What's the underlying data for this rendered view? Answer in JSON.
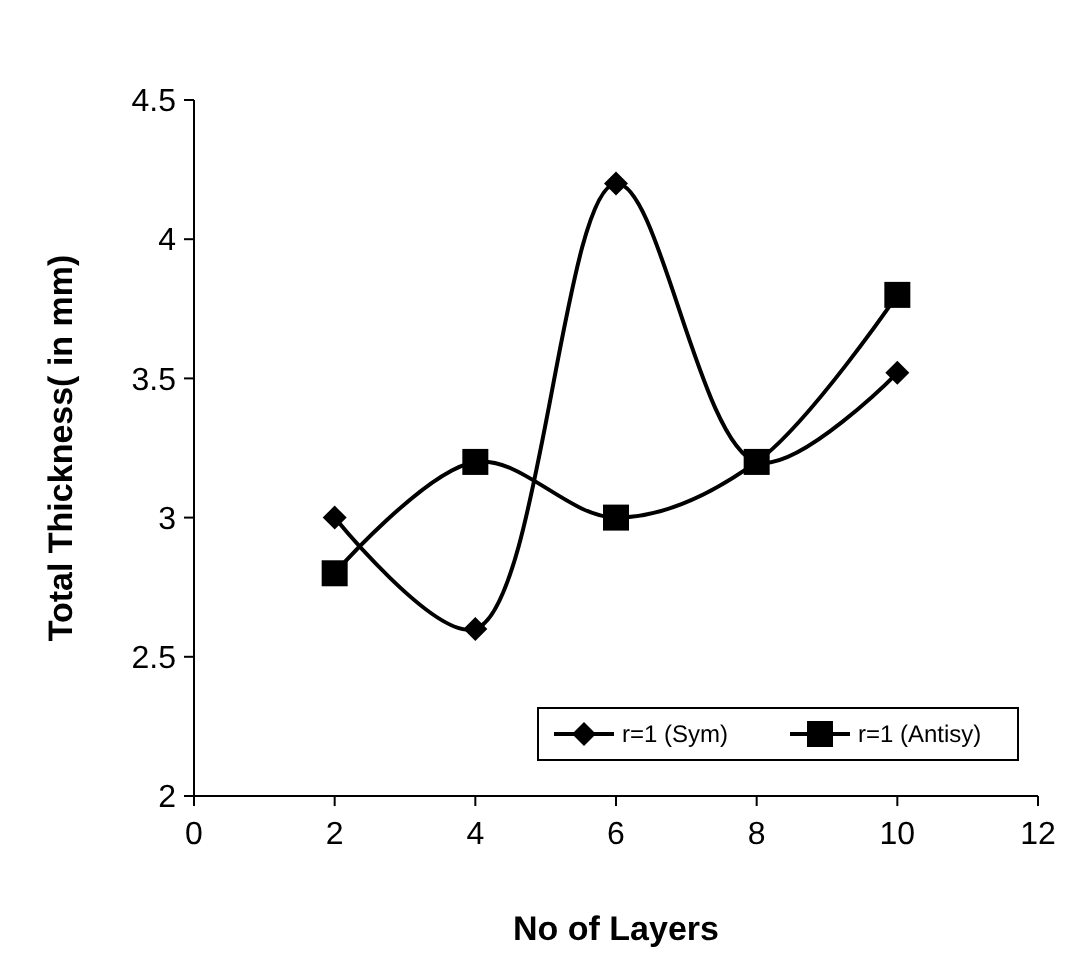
{
  "chart_data": {
    "type": "line",
    "xlabel": "No of Layers",
    "ylabel": "Total Thickness( in mm)",
    "x": [
      2,
      4,
      6,
      8,
      10
    ],
    "series": [
      {
        "name": "r=1 (Sym)",
        "color": "#000000",
        "marker": "diamond",
        "values": [
          3.0,
          2.6,
          4.2,
          3.2,
          3.52
        ]
      },
      {
        "name": "r=1 (Antisy)",
        "color": "#000000",
        "marker": "square",
        "values": [
          2.8,
          3.2,
          3.0,
          3.2,
          3.8
        ]
      }
    ],
    "xlim": [
      0,
      12
    ],
    "xticks": [
      0,
      2,
      4,
      6,
      8,
      10,
      12
    ],
    "ylim": [
      2,
      4.5
    ],
    "yticks": [
      2,
      2.5,
      3,
      3.5,
      4,
      4.5
    ],
    "grid": false,
    "legend": "bottom right",
    "line_style": "solid"
  }
}
